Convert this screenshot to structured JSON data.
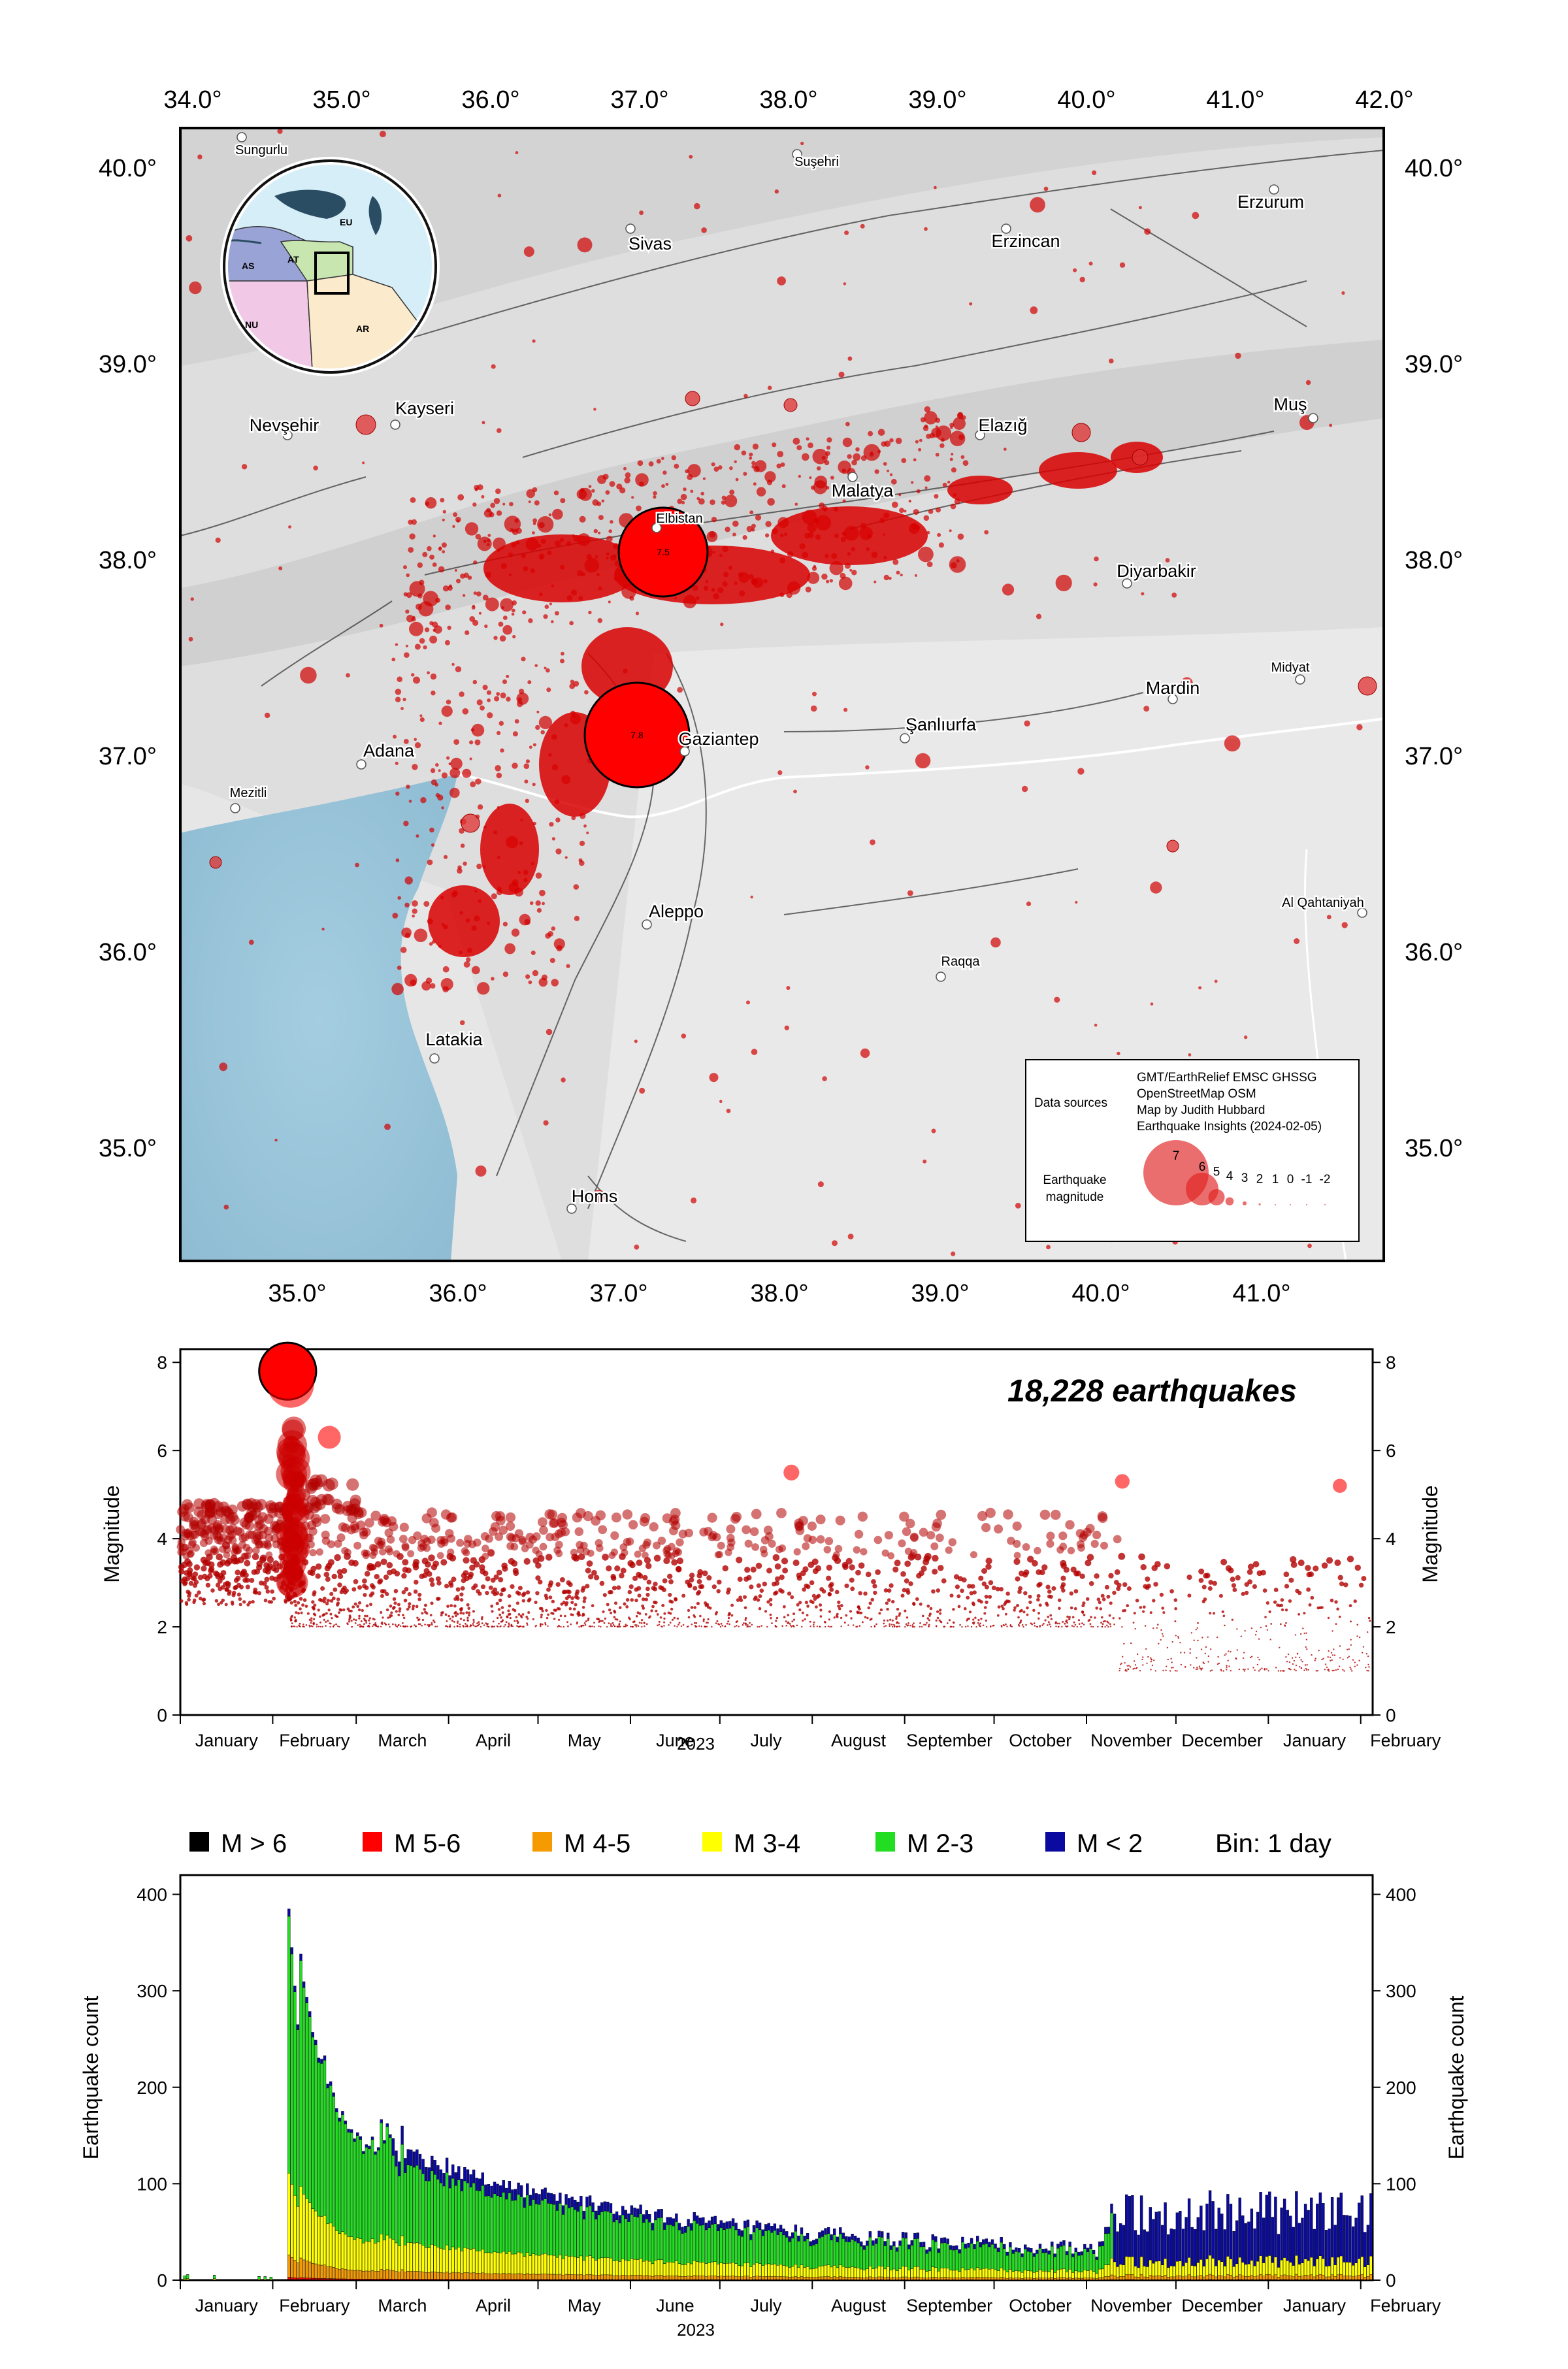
{
  "map": {
    "top_lon_ticks": [
      "34.0°",
      "35.0°",
      "36.0°",
      "37.0°",
      "38.0°",
      "39.0°",
      "40.0°",
      "41.0°",
      "42.0°"
    ],
    "bottom_lon_ticks": [
      "35.0°",
      "36.0°",
      "37.0°",
      "38.0°",
      "39.0°",
      "40.0°",
      "41.0°"
    ],
    "lat_ticks": [
      "40.0°",
      "39.0°",
      "38.0°",
      "37.0°",
      "36.0°",
      "35.0°"
    ],
    "cities": [
      {
        "name": "Sungurlu",
        "size": "small"
      },
      {
        "name": "Suşehri",
        "size": "small"
      },
      {
        "name": "Erzurum",
        "size": "large"
      },
      {
        "name": "Sivas",
        "size": "large"
      },
      {
        "name": "Erzincan",
        "size": "large"
      },
      {
        "name": "Kayseri",
        "size": "large"
      },
      {
        "name": "Nevşehir",
        "size": "large"
      },
      {
        "name": "Elazığ",
        "size": "large"
      },
      {
        "name": "Muş",
        "size": "large"
      },
      {
        "name": "Malatya",
        "size": "large"
      },
      {
        "name": "Elbistan",
        "size": "small"
      },
      {
        "name": "Diyarbakir",
        "size": "large"
      },
      {
        "name": "Midyat",
        "size": "small"
      },
      {
        "name": "Mardin",
        "size": "large"
      },
      {
        "name": "Adana",
        "size": "large"
      },
      {
        "name": "Gaziantep",
        "size": "large"
      },
      {
        "name": "Şanlıurfa",
        "size": "large"
      },
      {
        "name": "Mezitli",
        "size": "small"
      },
      {
        "name": "Aleppo",
        "size": "large"
      },
      {
        "name": "Al Qahtaniyah",
        "size": "small"
      },
      {
        "name": "Raqqa",
        "size": "small"
      },
      {
        "name": "Latakia",
        "size": "large"
      },
      {
        "name": "Homs",
        "size": "large"
      }
    ],
    "mainshocks": [
      {
        "label": "7.5",
        "magnitude": 7.5
      },
      {
        "label": "7.8",
        "magnitude": 7.8
      }
    ],
    "inset": {
      "plates": [
        "EU",
        "AS",
        "AT",
        "NU",
        "AR"
      ]
    },
    "legend": {
      "data_sources_title": "Data sources",
      "sources": [
        "GMT/EarthRelief EMSC GHSSG",
        "OpenStreetMap OSM",
        "Map by Judith Hubbard",
        "Earthquake Insights (2024-02-05)"
      ],
      "magnitude_title_line1": "Earthquake",
      "magnitude_title_line2": "magnitude",
      "magnitude_labels": [
        "7",
        "6",
        "5",
        "4",
        "3",
        "2",
        "1",
        "0",
        "-1",
        "-2"
      ]
    }
  },
  "magnitude_plot": {
    "title": "18,228 earthquakes",
    "ylabel": "Magnitude",
    "y_ticks": [
      "0",
      "2",
      "4",
      "6",
      "8"
    ],
    "months": [
      "January",
      "February",
      "March",
      "April",
      "May",
      "June",
      "July",
      "August",
      "September",
      "October",
      "November",
      "December",
      "January",
      "February"
    ],
    "year": "2023"
  },
  "count_plot": {
    "legend": [
      {
        "label": "M > 6",
        "color": "#000000"
      },
      {
        "label": "M 5-6",
        "color": "#ff0000"
      },
      {
        "label": "M 4-5",
        "color": "#f59a00"
      },
      {
        "label": "M 3-4",
        "color": "#ffff00"
      },
      {
        "label": "M 2-3",
        "color": "#22dd22"
      },
      {
        "label": "M < 2",
        "color": "#0a0aa0"
      }
    ],
    "bin_label": "Bin: 1 day",
    "ylabel": "Earthquake count",
    "y_ticks": [
      "0",
      "100",
      "200",
      "300",
      "400"
    ],
    "months": [
      "January",
      "February",
      "March",
      "April",
      "May",
      "June",
      "July",
      "August",
      "September",
      "October",
      "November",
      "December",
      "January",
      "February"
    ],
    "year": "2023"
  },
  "chart_data": [
    {
      "type": "scatter",
      "title": "18,228 earthquakes",
      "ylabel": "Magnitude",
      "ylim": [
        0,
        8.3
      ],
      "x_axis": "2023-01-01 to 2024-02-05",
      "highlighted_events": [
        {
          "date": "2023-02-06",
          "magnitude": 7.8
        },
        {
          "date": "2023-02-06",
          "magnitude": 7.5
        },
        {
          "date": "2023-02-20",
          "magnitude": 6.3
        },
        {
          "date": "2023-07-25",
          "magnitude": 5.5
        },
        {
          "date": "2023-11-13",
          "magnitude": 5.3
        },
        {
          "date": "2024-01-25",
          "magnitude": 5.2
        }
      ]
    },
    {
      "type": "bar",
      "ylabel": "Earthquake count",
      "ylim": [
        0,
        420
      ],
      "bin": "1 day",
      "series_names": [
        "M > 6",
        "M 5-6",
        "M 4-5",
        "M 3-4",
        "M 2-3",
        "M < 2"
      ],
      "key_values": [
        {
          "date": "2023-02-06",
          "total": 385
        },
        {
          "date": "2023-02-08",
          "total": 300
        },
        {
          "date": "2023-03-03",
          "total": 160
        },
        {
          "date": "2023-04-15",
          "total": 90
        },
        {
          "date": "2023-06-15",
          "total": 45
        },
        {
          "date": "2023-10-15",
          "total": 20
        },
        {
          "date": "2023-11-15",
          "total": 100
        },
        {
          "date": "2024-01-15",
          "total": 70
        }
      ]
    }
  ]
}
